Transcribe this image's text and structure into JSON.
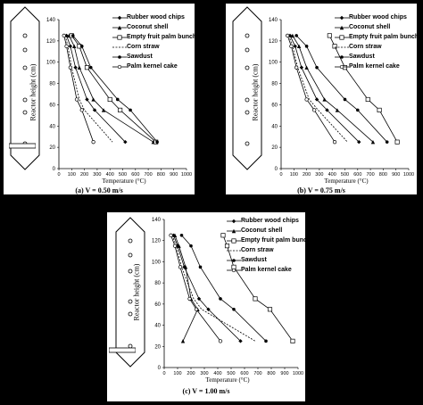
{
  "common": {
    "ylabel": "Reactor height (cm)",
    "xlabel": "Temperature (°C)",
    "x_ticks": [
      "0",
      "100",
      "200",
      "300",
      "400",
      "500",
      "600",
      "700",
      "800",
      "900",
      "1000"
    ],
    "y_ticks": [
      "0",
      "20",
      "40",
      "60",
      "80",
      "100",
      "120",
      "140"
    ]
  },
  "legend": [
    {
      "name": "Rubber wood chips",
      "marker": "filled-diamond",
      "dash": "solid"
    },
    {
      "name": "Coconut shell",
      "marker": "filled-triangle",
      "dash": "solid"
    },
    {
      "name": "Empty fruit palm bunch",
      "marker": "open-square",
      "dash": "solid"
    },
    {
      "name": "Corn straw",
      "marker": "none",
      "dash": "dashed"
    },
    {
      "name": "Sawdust",
      "marker": "filled-circle",
      "dash": "solid"
    },
    {
      "name": "Palm kernel cake",
      "marker": "open-circle",
      "dash": "solid"
    }
  ],
  "chart_data": [
    {
      "type": "line",
      "caption": "(a) V = 0.50 m/s",
      "xlabel": "Temperature (°C)",
      "ylabel": "Reactor height (cm)",
      "xlim": [
        0,
        1000
      ],
      "ylim": [
        0,
        140
      ],
      "y": [
        125,
        115,
        95,
        65,
        55,
        25
      ],
      "series": [
        {
          "name": "Rubber wood chips",
          "x": [
            60,
            90,
            130,
            220,
            280,
            520
          ]
        },
        {
          "name": "Coconut shell",
          "x": [
            80,
            120,
            160,
            270,
            350,
            740
          ]
        },
        {
          "name": "Empty fruit palm bunch",
          "x": [
            100,
            160,
            220,
            400,
            480,
            760
          ]
        },
        {
          "name": "Corn straw",
          "x": [
            50,
            70,
            100,
            160,
            200,
            420
          ]
        },
        {
          "name": "Sawdust",
          "x": [
            110,
            180,
            250,
            460,
            560,
            770
          ]
        },
        {
          "name": "Palm kernel cake",
          "x": [
            40,
            60,
            90,
            140,
            180,
            270
          ]
        }
      ]
    },
    {
      "type": "line",
      "caption": "(b) V = 0.75 m/s",
      "xlabel": "Temperature (°C)",
      "ylabel": "Reactor height (cm)",
      "xlim": [
        0,
        1000
      ],
      "ylim": [
        0,
        140
      ],
      "y": [
        125,
        115,
        95,
        65,
        55,
        25
      ],
      "series": [
        {
          "name": "Rubber wood chips",
          "x": [
            70,
            110,
            160,
            280,
            360,
            610
          ]
        },
        {
          "name": "Coconut shell",
          "x": [
            90,
            140,
            200,
            340,
            440,
            720
          ]
        },
        {
          "name": "Empty fruit palm bunch",
          "x": [
            380,
            420,
            500,
            680,
            770,
            910
          ]
        },
        {
          "name": "Corn straw",
          "x": [
            60,
            90,
            130,
            220,
            290,
            520
          ]
        },
        {
          "name": "Sawdust",
          "x": [
            120,
            200,
            280,
            500,
            600,
            830
          ]
        },
        {
          "name": "Palm kernel cake",
          "x": [
            50,
            80,
            120,
            200,
            260,
            420
          ]
        }
      ]
    },
    {
      "type": "line",
      "caption": "(c) V = 1.00 m/s",
      "xlabel": "Temperature (°C)",
      "ylabel": "Reactor height (cm)",
      "xlim": [
        0,
        1000
      ],
      "ylim": [
        0,
        140
      ],
      "y": [
        125,
        115,
        95,
        65,
        55,
        25
      ],
      "series": [
        {
          "name": "Rubber wood chips",
          "x": [
            70,
            100,
            150,
            260,
            330,
            570
          ]
        },
        {
          "name": "Coconut shell",
          "x": [
            80,
            110,
            160,
            200,
            250,
            140
          ]
        },
        {
          "name": "Empty fruit palm bunch",
          "x": [
            440,
            470,
            520,
            680,
            790,
            960
          ]
        },
        {
          "name": "Corn straw",
          "x": [
            60,
            90,
            130,
            220,
            280,
            680
          ]
        },
        {
          "name": "Sawdust",
          "x": [
            130,
            200,
            270,
            420,
            520,
            760
          ]
        },
        {
          "name": "Palm kernel cake",
          "x": [
            50,
            80,
            120,
            190,
            240,
            420
          ]
        }
      ]
    }
  ]
}
